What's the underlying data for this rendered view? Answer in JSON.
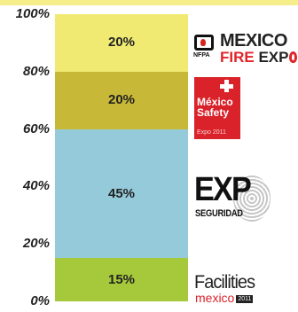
{
  "chart_data": {
    "type": "bar",
    "stacked": true,
    "categories": [
      ""
    ],
    "series": [
      {
        "values": [
          15
        ],
        "label": "15%",
        "color": "#a6c93b"
      },
      {
        "values": [
          45
        ],
        "label": "45%",
        "color": "#95cadb"
      },
      {
        "values": [
          20
        ],
        "label": "20%",
        "color": "#c8b838"
      },
      {
        "values": [
          20
        ],
        "label": "20%",
        "color": "#f0ea73"
      }
    ],
    "yticks": [
      "0%",
      "20%",
      "40%",
      "60%",
      "80%",
      "100%"
    ],
    "ylim": [
      0,
      100
    ],
    "grid": false,
    "legend": "none"
  },
  "logos": {
    "mexico_fire_expo": {
      "nfpa": "NFPA",
      "line1": "MEXICO",
      "line2_a": "FIRE ",
      "line2_b": "EXP"
    },
    "mexico_safety": {
      "line1": "México",
      "line2": "Safety",
      "line3": "Expo 2011"
    },
    "expo_seguridad": {
      "line1": "EXP",
      "line2": "SEGURIDAD"
    },
    "facilities_mexico": {
      "line1": "Facilities",
      "line2": "mexico",
      "year": "2011"
    }
  },
  "colors": {
    "top_band": "#f6ee8a"
  }
}
